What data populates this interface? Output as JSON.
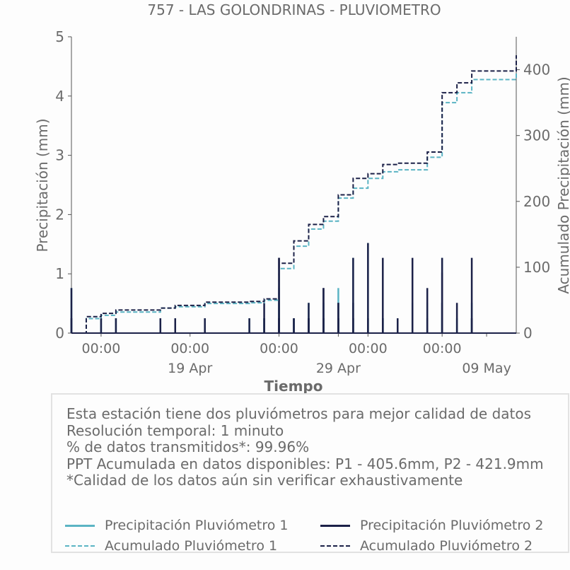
{
  "chart_data": {
    "type": "line",
    "title": "757 - LAS GOLONDRINAS - PLUVIOMETRO",
    "xlabel": "Tiempo",
    "ylabel": "Precipitación (mm)",
    "y2label": "Acumulado Precipitación (mm)",
    "ylim": [
      0,
      5
    ],
    "y2lim": [
      0,
      450
    ],
    "yticks": [
      "0",
      "1",
      "2",
      "3",
      "4",
      "5"
    ],
    "y2ticks": [
      "0",
      "100",
      "200",
      "300",
      "400"
    ],
    "xlim": [
      "2025-04-11",
      "2025-05-11"
    ],
    "xticks": [
      {
        "x": "2025-04-13",
        "label": "00:00",
        "sub": ""
      },
      {
        "x": "2025-04-19",
        "label": "00:00",
        "sub": "19 Apr"
      },
      {
        "x": "2025-04-25",
        "label": "00:00",
        "sub": ""
      },
      {
        "x": "2025-04-29",
        "label": "",
        "sub": "29 Apr"
      },
      {
        "x": "2025-05-01",
        "label": "00:00",
        "sub": ""
      },
      {
        "x": "2025-05-06",
        "label": "00:00",
        "sub": ""
      },
      {
        "x": "2025-05-09",
        "label": "",
        "sub": "09 May"
      }
    ],
    "grid": false,
    "series": [
      {
        "name": "Precipitación Pluviómetro 1",
        "axis": "left",
        "style": "solid",
        "color": "#5bb4c4",
        "x": [
          "2025-04-11",
          "2025-04-11",
          "2025-04-13",
          "2025-04-14",
          "2025-04-17",
          "2025-04-18",
          "2025-04-20",
          "2025-04-23",
          "2025-04-24",
          "2025-04-24",
          "2025-04-25",
          "2025-04-25",
          "2025-04-25",
          "2025-04-25",
          "2025-04-26",
          "2025-04-26",
          "2025-04-27",
          "2025-04-27",
          "2025-04-27",
          "2025-04-28",
          "2025-04-28",
          "2025-04-28",
          "2025-04-29",
          "2025-04-29",
          "2025-04-29",
          "2025-04-29",
          "2025-04-30",
          "2025-04-30",
          "2025-04-30",
          "2025-05-01",
          "2025-05-01",
          "2025-05-02",
          "2025-05-02",
          "2025-05-02",
          "2025-05-03",
          "2025-05-04",
          "2025-05-04",
          "2025-05-05",
          "2025-05-05",
          "2025-05-06",
          "2025-05-06",
          "2025-05-06",
          "2025-05-07",
          "2025-05-08",
          "2025-05-08"
        ],
        "values": [
          0.76,
          0.25,
          0.25,
          0.25,
          0.25,
          0.25,
          0.25,
          0.25,
          0.25,
          0.25,
          0.25,
          0.76,
          0.51,
          0.25,
          0.25,
          0.25,
          0.25,
          0.51,
          0.25,
          0.25,
          0.25,
          0.51,
          0.25,
          0.76,
          0.25,
          0.51,
          0.25,
          1.27,
          0.25,
          0.25,
          1.52,
          0.25,
          0.25,
          0.25,
          0.25,
          0.51,
          0.25,
          0.51,
          0.25,
          1.27,
          0.51,
          0.25,
          0.25,
          0.51,
          0.25
        ]
      },
      {
        "name": "Precipitación Pluviómetro 2",
        "axis": "left",
        "style": "solid",
        "color": "#1c2148",
        "x": [
          "2025-04-11",
          "2025-04-11",
          "2025-04-13",
          "2025-04-14",
          "2025-04-17",
          "2025-04-18",
          "2025-04-20",
          "2025-04-23",
          "2025-04-24",
          "2025-04-24",
          "2025-04-25",
          "2025-04-25",
          "2025-04-25",
          "2025-04-25",
          "2025-04-26",
          "2025-04-26",
          "2025-04-27",
          "2025-04-27",
          "2025-04-27",
          "2025-04-28",
          "2025-04-28",
          "2025-04-28",
          "2025-04-29",
          "2025-04-29",
          "2025-04-29",
          "2025-04-29",
          "2025-04-30",
          "2025-04-30",
          "2025-04-30",
          "2025-05-01",
          "2025-05-01",
          "2025-05-02",
          "2025-05-02",
          "2025-05-02",
          "2025-05-03",
          "2025-05-04",
          "2025-05-04",
          "2025-05-05",
          "2025-05-05",
          "2025-05-06",
          "2025-05-06",
          "2025-05-06",
          "2025-05-07",
          "2025-05-08",
          "2025-05-08"
        ],
        "values": [
          0.76,
          0.25,
          0.25,
          0.25,
          0.25,
          0.25,
          0.25,
          0.25,
          0.25,
          0.51,
          0.25,
          1.27,
          0.25,
          1.27,
          0.25,
          0.25,
          0.25,
          0.51,
          0.25,
          0.76,
          0.25,
          0.76,
          0.25,
          0.51,
          0.51,
          0.25,
          0.51,
          1.27,
          0.25,
          0.25,
          1.52,
          0.25,
          1.27,
          0.25,
          0.25,
          0.51,
          1.27,
          0.76,
          0.25,
          1.27,
          0.51,
          1.02,
          0.51,
          0.25,
          1.27
        ]
      },
      {
        "name": "Acumulado Pluviómetro 1",
        "axis": "right",
        "style": "dashed",
        "color": "#5bb4c4",
        "x": [
          "2025-04-11",
          "2025-04-12",
          "2025-04-13",
          "2025-04-14",
          "2025-04-17",
          "2025-04-18",
          "2025-04-20",
          "2025-04-23",
          "2025-04-24",
          "2025-04-25",
          "2025-04-26",
          "2025-04-27",
          "2025-04-27",
          "2025-04-28",
          "2025-04-29",
          "2025-04-29",
          "2025-04-30",
          "2025-05-01",
          "2025-05-02",
          "2025-05-03",
          "2025-05-05",
          "2025-05-06",
          "2025-05-06",
          "2025-05-07",
          "2025-05-08",
          "2025-05-11"
        ],
        "values": [
          0,
          22,
          27,
          32,
          38,
          40,
          45,
          46,
          50,
          98,
          132,
          142,
          158,
          170,
          195,
          205,
          220,
          235,
          245,
          248,
          267,
          325,
          350,
          365,
          385,
          405.6
        ]
      },
      {
        "name": "Acumulado Pluviómetro 2",
        "axis": "right",
        "style": "dashed",
        "color": "#1c2148",
        "x": [
          "2025-04-11",
          "2025-04-12",
          "2025-04-13",
          "2025-04-14",
          "2025-04-17",
          "2025-04-18",
          "2025-04-20",
          "2025-04-23",
          "2025-04-24",
          "2025-04-25",
          "2025-04-26",
          "2025-04-27",
          "2025-04-27",
          "2025-04-28",
          "2025-04-29",
          "2025-04-29",
          "2025-04-30",
          "2025-05-01",
          "2025-05-02",
          "2025-05-03",
          "2025-05-05",
          "2025-05-06",
          "2025-05-06",
          "2025-05-07",
          "2025-05-08",
          "2025-05-11"
        ],
        "values": [
          0,
          25,
          30,
          35,
          38,
          42,
          47,
          48,
          52,
          106,
          140,
          148,
          165,
          177,
          198,
          210,
          235,
          242,
          256,
          258,
          275,
          340,
          365,
          380,
          398,
          421.9
        ]
      }
    ]
  },
  "info": {
    "lines": [
      "Esta estación tiene dos pluviómetros para mejor calidad de datos",
      "Resolución temporal: 1 minuto",
      "% de datos transmitidos*: 99.96%",
      "PPT Acumulada en datos disponibles: P1 - 405.6mm, P2 - 421.9mm",
      "*Calidad de los datos aún sin verificar exhaustivamente"
    ]
  },
  "legend": {
    "items": [
      {
        "label": "Precipitación Pluviómetro 1",
        "color": "#5bb4c4",
        "style": "solid"
      },
      {
        "label": "Precipitación Pluviómetro 2",
        "color": "#1c2148",
        "style": "solid"
      },
      {
        "label": "Acumulado Pluviómetro 1",
        "color": "#5bb4c4",
        "style": "dashed"
      },
      {
        "label": "Acumulado Pluviómetro 2",
        "color": "#1c2148",
        "style": "dashed"
      }
    ]
  }
}
